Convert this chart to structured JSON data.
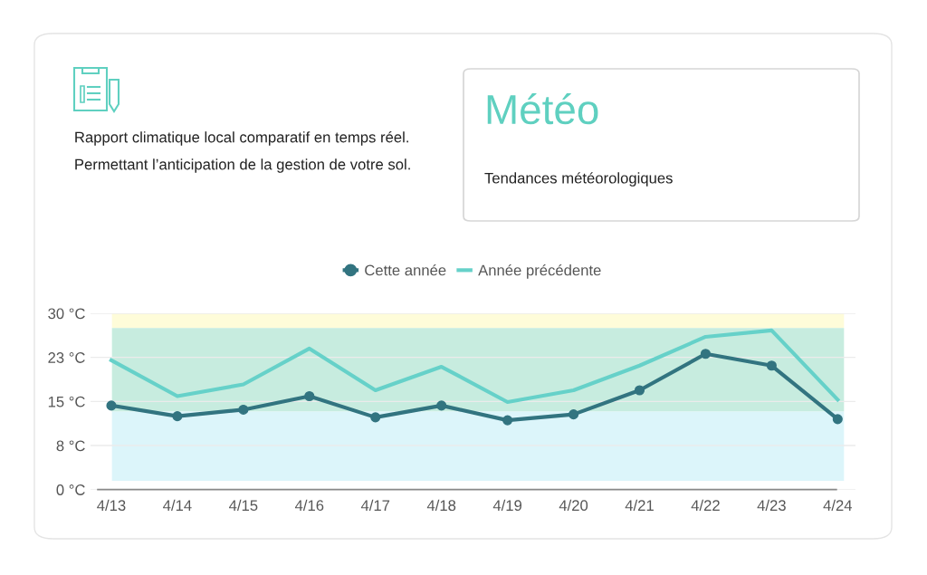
{
  "chart_data": {
    "type": "line",
    "title": "Météo",
    "subtitle": "Tendances météorologiques",
    "annotations": [
      "Rapport climatique local comparatif en temps réel. Permettant l’anticipation de la gestion de votre sol."
    ],
    "categories": [
      "4/13",
      "4/14",
      "4/15",
      "4/16",
      "4/17",
      "4/18",
      "4/19",
      "4/20",
      "4/21",
      "4/22",
      "4/23",
      "4/24"
    ],
    "series": [
      {
        "name": "Cette année",
        "color": "#327480",
        "marker": "circle",
        "values": [
          14.3,
          12.5,
          13.6,
          15.9,
          12.3,
          14.3,
          11.8,
          12.8,
          16.9,
          23.1,
          21.1,
          12.0
        ]
      },
      {
        "name": "Année précédente",
        "color": "#66d1c9",
        "marker": "none",
        "values": [
          22.0,
          15.9,
          17.9,
          24.0,
          16.9,
          20.9,
          14.9,
          16.9,
          21.1,
          26.0,
          27.1,
          15.3
        ]
      }
    ],
    "bands": [
      {
        "axis": "y",
        "from": 27.5,
        "to": 30,
        "color": "#fefcd9"
      },
      {
        "axis": "y",
        "from": 13.3,
        "to": 27.5,
        "color": "#c7ecdf"
      },
      {
        "axis": "y",
        "from": 1.5,
        "to": 13.3,
        "color": "#dcf5fa"
      }
    ],
    "ylim": [
      0,
      30
    ],
    "yticks": [
      {
        "value": 0,
        "label": "0 °C"
      },
      {
        "value": 7.5,
        "label": "8 °C"
      },
      {
        "value": 15,
        "label": "15 °C"
      },
      {
        "value": 22.5,
        "label": "23 °C"
      },
      {
        "value": 30,
        "label": "30 °C"
      }
    ],
    "grid": "y",
    "legend": "top",
    "line_style": "solid"
  }
}
